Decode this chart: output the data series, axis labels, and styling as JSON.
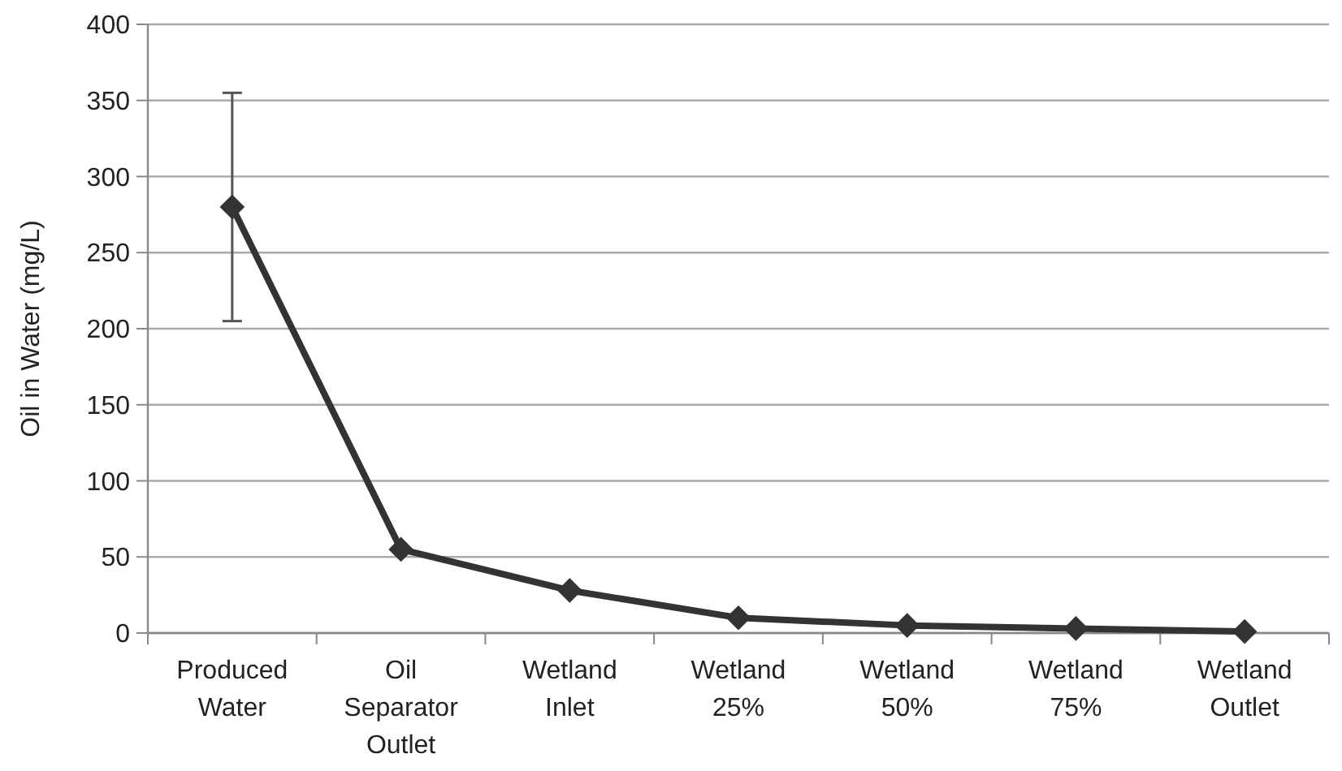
{
  "chart_data": {
    "type": "line",
    "ylabel": "Oil in Water (mg/L)",
    "categories": [
      "Produced Water",
      "Oil Separator Outlet",
      "Wetland Inlet",
      "Wetland 25%",
      "Wetland 50%",
      "Wetland 75%",
      "Wetland Outlet"
    ],
    "series": [
      {
        "color": "#333333",
        "values": [
          280,
          55,
          28,
          10,
          5,
          3,
          1
        ],
        "errors": [
          [
            205,
            355
          ],
          null,
          null,
          null,
          null,
          null,
          null
        ]
      }
    ],
    "ylim": [
      0,
      400
    ],
    "yticks": [
      0,
      50,
      100,
      150,
      200,
      250,
      300,
      350,
      400
    ],
    "grid": "y",
    "marker": "diamond"
  }
}
